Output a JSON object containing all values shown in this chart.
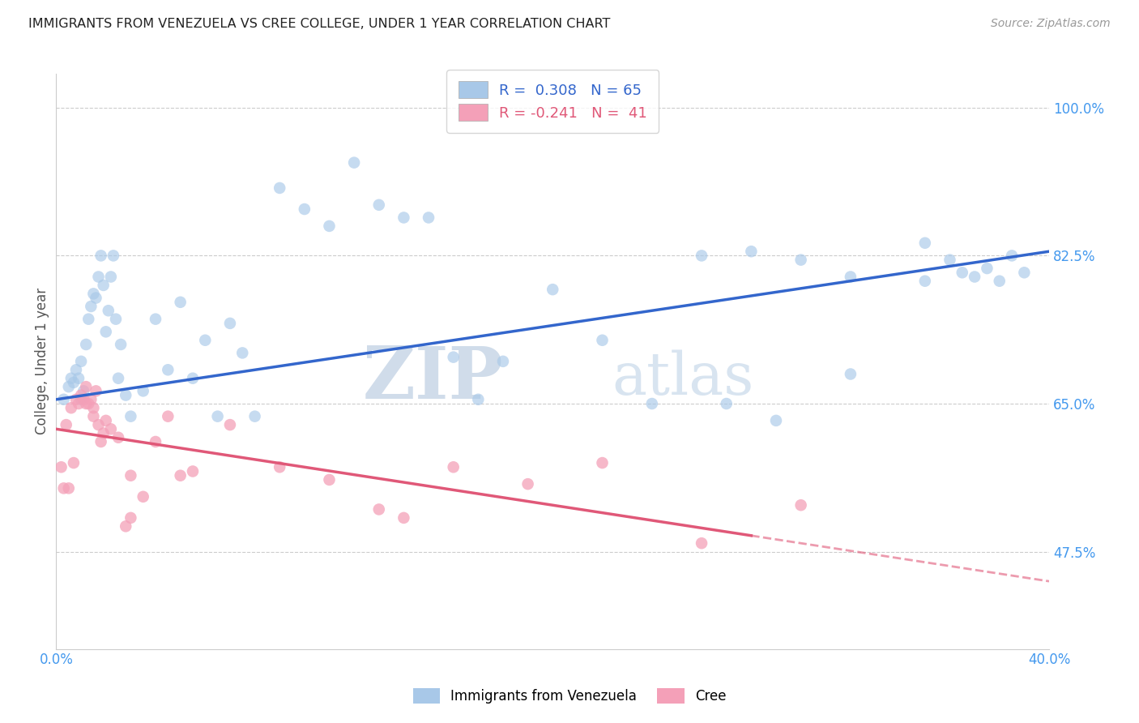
{
  "title": "IMMIGRANTS FROM VENEZUELA VS CREE COLLEGE, UNDER 1 YEAR CORRELATION CHART",
  "source": "Source: ZipAtlas.com",
  "ylabel": "College, Under 1 year",
  "ytick_vals": [
    47.5,
    65.0,
    82.5,
    100.0
  ],
  "ytick_labels": [
    "47.5%",
    "65.0%",
    "82.5%",
    "100.0%"
  ],
  "xtick_vals": [
    0.0,
    40.0
  ],
  "xtick_labels": [
    "0.0%",
    "40.0%"
  ],
  "xmin": 0.0,
  "xmax": 40.0,
  "ymin": 36.0,
  "ymax": 104.0,
  "blue_R": "0.308",
  "blue_N": "65",
  "pink_R": "-0.241",
  "pink_N": "41",
  "blue_dot_color": "#a8c8e8",
  "pink_dot_color": "#f4a0b8",
  "blue_line_color": "#3366cc",
  "pink_line_color": "#e05878",
  "right_axis_color": "#4499ee",
  "bottom_axis_color": "#4499ee",
  "legend_label_blue": "Immigrants from Venezuela",
  "legend_label_pink": "Cree",
  "watermark_zip": "ZIP",
  "watermark_atlas": "atlas",
  "blue_line_x0": 0.0,
  "blue_line_y0": 65.5,
  "blue_line_x1": 40.0,
  "blue_line_y1": 83.0,
  "pink_line_x0": 0.0,
  "pink_line_y0": 62.0,
  "pink_line_x1": 40.0,
  "pink_line_y1": 44.0,
  "pink_solid_end": 28.0,
  "blue_x": [
    0.3,
    0.5,
    0.6,
    0.7,
    0.8,
    0.9,
    1.0,
    1.0,
    1.1,
    1.2,
    1.3,
    1.4,
    1.5,
    1.6,
    1.7,
    1.8,
    1.9,
    2.0,
    2.1,
    2.2,
    2.3,
    2.4,
    2.5,
    2.6,
    2.8,
    3.0,
    3.5,
    4.0,
    4.5,
    5.0,
    5.5,
    6.0,
    6.5,
    7.0,
    7.5,
    8.0,
    9.0,
    10.0,
    11.0,
    12.0,
    13.0,
    14.0,
    15.0,
    16.0,
    17.0,
    18.0,
    20.0,
    22.0,
    24.0,
    26.0,
    28.0,
    30.0,
    32.0,
    35.0,
    36.0,
    37.0,
    38.0,
    39.0,
    27.0,
    29.0,
    32.0,
    35.0,
    37.5,
    38.5,
    36.5
  ],
  "blue_y": [
    65.5,
    67.0,
    68.0,
    67.5,
    69.0,
    68.0,
    70.0,
    65.5,
    66.5,
    72.0,
    75.0,
    76.5,
    78.0,
    77.5,
    80.0,
    82.5,
    79.0,
    73.5,
    76.0,
    80.0,
    82.5,
    75.0,
    68.0,
    72.0,
    66.0,
    63.5,
    66.5,
    75.0,
    69.0,
    77.0,
    68.0,
    72.5,
    63.5,
    74.5,
    71.0,
    63.5,
    90.5,
    88.0,
    86.0,
    93.5,
    88.5,
    87.0,
    87.0,
    70.5,
    65.5,
    70.0,
    78.5,
    72.5,
    65.0,
    82.5,
    83.0,
    82.0,
    80.0,
    84.0,
    82.0,
    80.0,
    79.5,
    80.5,
    65.0,
    63.0,
    68.5,
    79.5,
    81.0,
    82.5,
    80.5
  ],
  "pink_x": [
    0.2,
    0.3,
    0.4,
    0.5,
    0.6,
    0.7,
    0.8,
    0.9,
    1.0,
    1.1,
    1.2,
    1.3,
    1.4,
    1.5,
    1.6,
    1.7,
    1.8,
    1.9,
    2.0,
    2.2,
    2.5,
    3.0,
    3.5,
    4.0,
    4.5,
    5.5,
    7.0,
    9.0,
    11.0,
    13.0,
    16.0,
    19.0,
    22.0,
    26.0,
    30.0,
    3.0,
    2.8,
    1.2,
    1.5,
    14.0,
    5.0
  ],
  "pink_y": [
    57.5,
    55.0,
    62.5,
    55.0,
    64.5,
    58.0,
    65.5,
    65.0,
    66.0,
    65.5,
    67.0,
    65.0,
    65.5,
    63.5,
    66.5,
    62.5,
    60.5,
    61.5,
    63.0,
    62.0,
    61.0,
    56.5,
    54.0,
    60.5,
    63.5,
    57.0,
    62.5,
    57.5,
    56.0,
    52.5,
    57.5,
    55.5,
    58.0,
    48.5,
    53.0,
    51.5,
    50.5,
    65.0,
    64.5,
    51.5,
    56.5
  ]
}
